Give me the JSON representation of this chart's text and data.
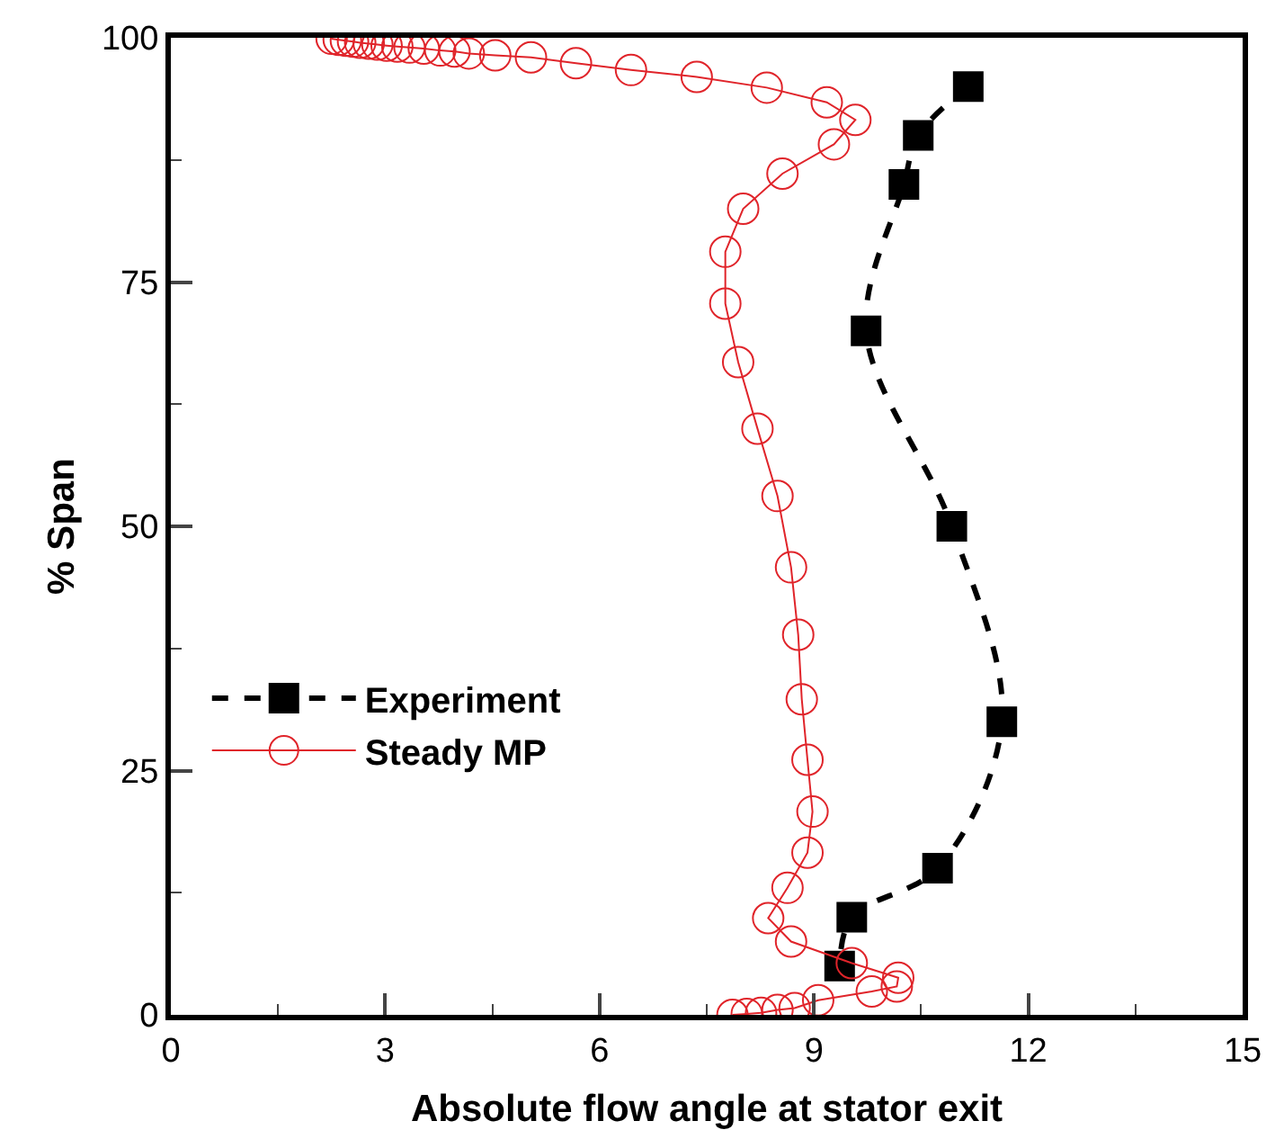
{
  "chart_data": {
    "type": "line",
    "xlabel": "Absolute flow angle at stator exit",
    "ylabel": "% Span",
    "xlim": [
      0,
      15
    ],
    "xticks": [
      0,
      3,
      6,
      9,
      12,
      15
    ],
    "ylim": [
      0,
      100
    ],
    "yticks": [
      0,
      25,
      50,
      75,
      100
    ],
    "grid": false,
    "legend": "left",
    "series": [
      {
        "name": "Experiment",
        "color": "#000000",
        "marker": "square",
        "line_style": "dashed",
        "x": [
          11.16,
          10.46,
          10.26,
          9.73,
          10.93,
          11.63,
          10.73,
          9.53,
          9.36
        ],
        "values": [
          95,
          90,
          85,
          70,
          50,
          30,
          15,
          10,
          5
        ]
      },
      {
        "name": "Steady MP",
        "color": "#e0242a",
        "marker": "circle",
        "line_style": "solid",
        "x": [
          2.25,
          2.35,
          2.45,
          2.55,
          2.65,
          2.77,
          2.89,
          3.02,
          3.17,
          3.34,
          3.54,
          3.77,
          3.97,
          4.17,
          4.54,
          5.04,
          5.67,
          6.44,
          7.36,
          8.34,
          9.18,
          9.58,
          9.28,
          8.56,
          8.01,
          7.76,
          7.76,
          7.94,
          8.21,
          8.49,
          8.68,
          8.78,
          8.83,
          8.91,
          8.98,
          8.91,
          8.63,
          8.36,
          8.68,
          9.53,
          10.18,
          10.16,
          9.81,
          9.06,
          8.73,
          8.49,
          8.26,
          8.06,
          7.86
        ],
        "values": [
          99.9,
          99.8,
          99.7,
          99.6,
          99.5,
          99.4,
          99.3,
          99.2,
          99.1,
          99.0,
          98.9,
          98.7,
          98.6,
          98.4,
          98.2,
          98.0,
          97.4,
          96.7,
          96.0,
          94.9,
          93.4,
          91.6,
          89.1,
          86.1,
          82.5,
          78.1,
          72.8,
          66.8,
          60.0,
          53.1,
          45.8,
          38.9,
          32.3,
          26.1,
          20.8,
          16.6,
          13.0,
          9.9,
          7.5,
          5.3,
          3.8,
          2.9,
          2.4,
          1.5,
          0.7,
          0.5,
          0.2,
          0.1,
          0.0
        ]
      }
    ]
  }
}
